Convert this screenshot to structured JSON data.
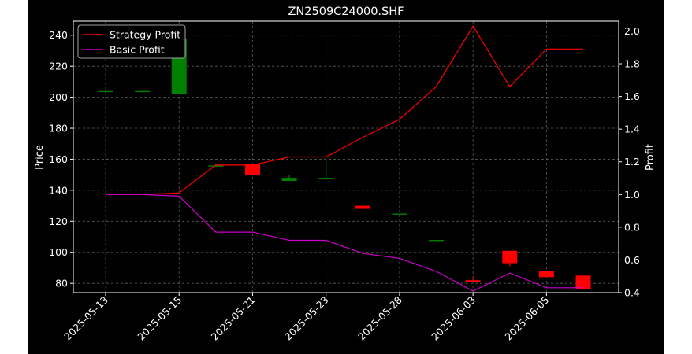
{
  "chart_data": {
    "type": "candlestick+line",
    "title": "ZN2509C24000.SHF",
    "ylabel_left": "Price",
    "ylabel_right": "Profit",
    "ylim_left": [
      74,
      249
    ],
    "ylim_right": [
      0.4,
      2.06
    ],
    "yticks_left": [
      80,
      100,
      120,
      140,
      160,
      180,
      200,
      220,
      240
    ],
    "yticks_right": [
      "0.4",
      "0.6",
      "0.8",
      "1.0",
      "1.2",
      "1.4",
      "1.6",
      "1.8",
      "2.0"
    ],
    "grid": true,
    "legend_placement": "top-left",
    "xtick_labels": [
      "2025-05-13",
      "2025-05-15",
      "2025-05-21",
      "2025-05-23",
      "2025-05-28",
      "2025-06-03",
      "2025-06-05"
    ],
    "xtick_index": [
      0,
      2,
      4,
      6,
      8,
      10,
      12
    ],
    "dates": [
      "2025-05-13",
      "2025-05-14",
      "2025-05-15",
      "2025-05-16",
      "2025-05-21",
      "2025-05-22",
      "2025-05-23",
      "2025-05-27",
      "2025-05-28",
      "2025-05-29",
      "2025-06-03",
      "2025-06-04",
      "2025-06-05",
      "2025-06-06"
    ],
    "candles": [
      {
        "date": "2025-05-13",
        "open": 204,
        "close": 204,
        "high": 204,
        "low": 204
      },
      {
        "date": "2025-05-14",
        "open": 204,
        "close": 204,
        "high": 204,
        "low": 204
      },
      {
        "date": "2025-05-15",
        "open": 202,
        "close": 238,
        "high": 238,
        "low": 202
      },
      {
        "date": "2025-05-16",
        "open": 156,
        "close": 156,
        "high": 157,
        "low": 156
      },
      {
        "date": "2025-05-21",
        "open": 157,
        "close": 150,
        "high": 157,
        "low": 150
      },
      {
        "date": "2025-05-22",
        "open": 146,
        "close": 148,
        "high": 150,
        "low": 146
      },
      {
        "date": "2025-05-23",
        "open": 147,
        "close": 148,
        "high": 160,
        "low": 147
      },
      {
        "date": "2025-05-27",
        "open": 130,
        "close": 128,
        "high": 130,
        "low": 128
      },
      {
        "date": "2025-05-28",
        "open": 125,
        "close": 125,
        "high": 125,
        "low": 125
      },
      {
        "date": "2025-05-29",
        "open": 108,
        "close": 108,
        "high": 108,
        "low": 108
      },
      {
        "date": "2025-06-03",
        "open": 82,
        "close": 81,
        "high": 84,
        "low": 81
      },
      {
        "date": "2025-06-04",
        "open": 101,
        "close": 93,
        "high": 101,
        "low": 91
      },
      {
        "date": "2025-06-05",
        "open": 88,
        "close": 84,
        "high": 88,
        "low": 84
      },
      {
        "date": "2025-06-06",
        "open": 85,
        "close": 76,
        "high": 85,
        "low": 76
      }
    ],
    "candle_colors": {
      "up": "#008000",
      "down": "#ff0000"
    },
    "series": [
      {
        "name": "Strategy Profit",
        "color": "#ff0000",
        "axis": "right",
        "values": [
          1.0,
          1.0,
          1.01,
          1.18,
          1.18,
          1.23,
          1.23,
          1.35,
          1.46,
          1.66,
          2.03,
          1.66,
          1.89,
          1.89
        ]
      },
      {
        "name": "Basic Profit",
        "color": "#cc00cc",
        "axis": "right",
        "values": [
          1.0,
          1.0,
          0.99,
          0.77,
          0.77,
          0.72,
          0.72,
          0.64,
          0.61,
          0.53,
          0.41,
          0.52,
          0.43,
          0.43
        ]
      }
    ]
  }
}
